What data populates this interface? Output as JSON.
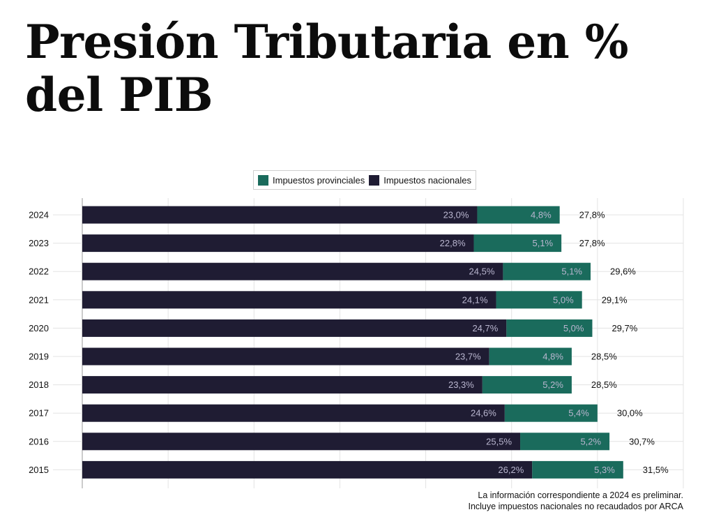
{
  "page": {
    "title": "Presión Tributaria en % del PIB",
    "notes": [
      "La información correspondiente a 2024 es preliminar.",
      "Incluye impuestos nacionales no recaudados por ARCA"
    ]
  },
  "legend": [
    {
      "label": "Impuestos provinciales",
      "color": "#1a6b5c"
    },
    {
      "label": "Impuestos nacionales",
      "color": "#1f1c33"
    }
  ],
  "chart_data": {
    "type": "bar",
    "orientation": "horizontal",
    "stacked": true,
    "categories": [
      "2024",
      "2023",
      "2022",
      "2021",
      "2020",
      "2019",
      "2018",
      "2017",
      "2016",
      "2015"
    ],
    "series": [
      {
        "name": "Impuestos nacionales",
        "color": "#1f1c33",
        "values": [
          23.0,
          22.8,
          24.5,
          24.1,
          24.7,
          23.7,
          23.3,
          24.6,
          25.5,
          26.2
        ],
        "labels": [
          "23,0%",
          "22,8%",
          "24,5%",
          "24,1%",
          "24,7%",
          "23,7%",
          "23,3%",
          "24,6%",
          "25,5%",
          "26,2%"
        ]
      },
      {
        "name": "Impuestos provinciales",
        "color": "#1a6b5c",
        "values": [
          4.8,
          5.1,
          5.1,
          5.0,
          5.0,
          4.8,
          5.2,
          5.4,
          5.2,
          5.3
        ],
        "labels": [
          "4,8%",
          "5,1%",
          "5,1%",
          "5,0%",
          "5,0%",
          "4,8%",
          "5,2%",
          "5,4%",
          "5,2%",
          "5,3%"
        ]
      }
    ],
    "totals": [
      27.8,
      27.8,
      29.6,
      29.1,
      29.7,
      28.5,
      28.5,
      30.0,
      30.7,
      31.5
    ],
    "total_labels": [
      "27,8%",
      "27,8%",
      "29,6%",
      "29,1%",
      "29,7%",
      "28,5%",
      "28,5%",
      "30,0%",
      "30,7%",
      "31,5%"
    ],
    "xlim": [
      0,
      35
    ],
    "grid": true,
    "legend_position": "top-center",
    "inner_label_color": "#b9b6cf",
    "total_label_color": "#111111",
    "axis_color": "#999999",
    "grid_color": "#e3e3e3"
  }
}
